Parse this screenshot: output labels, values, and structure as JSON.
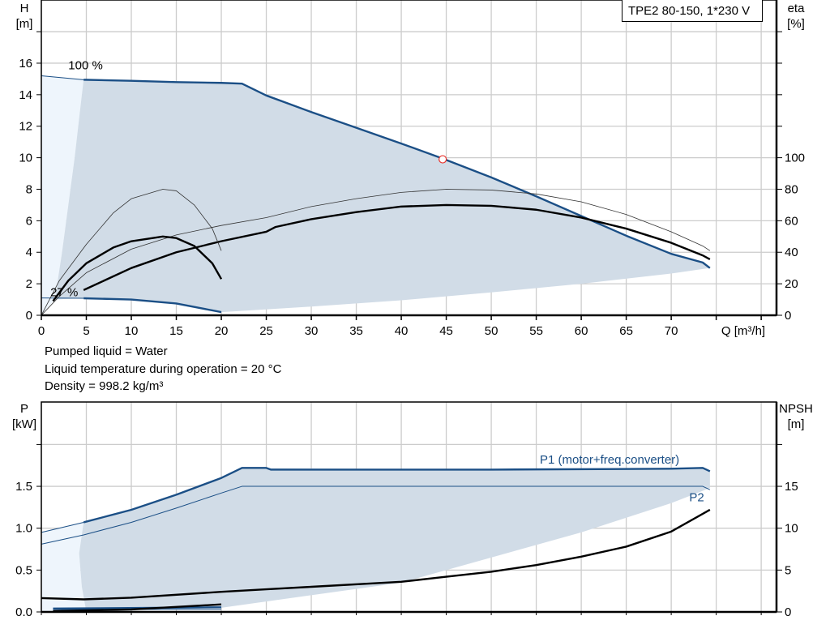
{
  "title_box": "TPE2 80-150, 1*230 V",
  "info": [
    "Pumped liquid = Water",
    "Liquid temperature during operation = 20 °C",
    "Density = 998.2 kg/m³"
  ],
  "colors": {
    "blue": "#1b4f86",
    "fill": "#d1dce7",
    "fill_light": "#eef5fc",
    "grid": "#cccccc",
    "point": "#e8322c"
  },
  "chart_data": [
    {
      "type": "line",
      "xlabel": "Q [m³/h]",
      "ylabel_left": [
        "H",
        "[m]"
      ],
      "ylabel_right": [
        "eta",
        "[%]"
      ],
      "xlim": [
        0,
        81.7
      ],
      "ylim_left": [
        0,
        20
      ],
      "ylim_right": [
        0,
        200
      ],
      "xticks": [
        0,
        5,
        10,
        15,
        20,
        25,
        30,
        35,
        40,
        45,
        50,
        55,
        60,
        65,
        70
      ],
      "yticks_left": [
        0,
        2,
        4,
        6,
        8,
        10,
        12,
        14,
        16
      ],
      "yticks_right": [
        0,
        20,
        40,
        60,
        80,
        100
      ],
      "grid": true,
      "labels": [
        {
          "text": "100 %",
          "x": 3,
          "y": 15.6
        },
        {
          "text": "27 %",
          "x": 1,
          "y": 1.2
        }
      ],
      "operating_point": {
        "Q": 44.6,
        "H": 9.9
      },
      "series": [
        {
          "id": "H-max",
          "axis": "left",
          "style": "blue",
          "points": [
            [
              4.7,
              14.95
            ],
            [
              10,
              14.88
            ],
            [
              15,
              14.8
            ],
            [
              20,
              14.75
            ],
            [
              22.3,
              14.7
            ],
            [
              25,
              13.95
            ],
            [
              30,
              12.9
            ],
            [
              35,
              11.9
            ],
            [
              40,
              10.9
            ],
            [
              44.6,
              9.95
            ],
            [
              50,
              8.75
            ],
            [
              55,
              7.55
            ],
            [
              60,
              6.3
            ],
            [
              65,
              5.05
            ],
            [
              70,
              3.9
            ],
            [
              73.5,
              3.35
            ],
            [
              74.3,
              3.0
            ]
          ]
        },
        {
          "id": "H-max-ext",
          "axis": "left",
          "style": "blue-thin",
          "points": [
            [
              0,
              15.2
            ],
            [
              4.7,
              14.95
            ]
          ]
        },
        {
          "id": "H-min",
          "axis": "left",
          "style": "blue",
          "points": [
            [
              4.7,
              1.08
            ],
            [
              10,
              1.0
            ],
            [
              15,
              0.75
            ],
            [
              20,
              0.2
            ]
          ]
        },
        {
          "id": "H-min-ext",
          "axis": "left",
          "style": "blue-thin",
          "points": [
            [
              0,
              1.1
            ],
            [
              4.7,
              1.08
            ]
          ]
        },
        {
          "id": "eta-max-thin",
          "axis": "right",
          "style": "thin",
          "points": [
            [
              0,
              0
            ],
            [
              2,
              12
            ],
            [
              5,
              27
            ],
            [
              10,
              42
            ],
            [
              15,
              51
            ],
            [
              20,
              57
            ],
            [
              25,
              62
            ],
            [
              30,
              69
            ],
            [
              35,
              74
            ],
            [
              40,
              78
            ],
            [
              45,
              80
            ],
            [
              50,
              79.5
            ],
            [
              55,
              77
            ],
            [
              60,
              72
            ],
            [
              65,
              64
            ],
            [
              70,
              53
            ],
            [
              73.5,
              44
            ],
            [
              74.3,
              41
            ]
          ]
        },
        {
          "id": "eta-max",
          "axis": "right",
          "style": "thick",
          "points": [
            [
              4.7,
              16
            ],
            [
              10,
              30
            ],
            [
              15,
              40
            ],
            [
              20,
              47
            ],
            [
              25,
              53
            ],
            [
              26,
              56
            ],
            [
              30,
              61
            ],
            [
              35,
              65.5
            ],
            [
              40,
              69
            ],
            [
              45,
              70
            ],
            [
              50,
              69.5
            ],
            [
              55,
              67
            ],
            [
              60,
              62
            ],
            [
              65,
              55
            ],
            [
              70,
              46
            ],
            [
              73.5,
              38
            ],
            [
              74.3,
              35.5
            ]
          ]
        },
        {
          "id": "eta-min-thin",
          "axis": "right",
          "style": "thin",
          "points": [
            [
              0,
              0
            ],
            [
              2,
              22
            ],
            [
              5,
              45
            ],
            [
              8,
              65
            ],
            [
              10,
              74
            ],
            [
              13.5,
              80
            ],
            [
              15,
              79
            ],
            [
              17,
              70
            ],
            [
              19,
              55
            ],
            [
              20,
              41
            ]
          ]
        },
        {
          "id": "eta-min",
          "axis": "right",
          "style": "thick",
          "points": [
            [
              1.3,
              9
            ],
            [
              3,
              22
            ],
            [
              5,
              33
            ],
            [
              8,
              43
            ],
            [
              10,
              47
            ],
            [
              13.5,
              50
            ],
            [
              15,
              49
            ],
            [
              17,
              44
            ],
            [
              19,
              33
            ],
            [
              20,
              23
            ]
          ]
        }
      ],
      "region": [
        [
          4.7,
          14.95
        ],
        [
          10,
          14.88
        ],
        [
          15,
          14.8
        ],
        [
          20,
          14.75
        ],
        [
          22.3,
          14.7
        ],
        [
          25,
          13.95
        ],
        [
          30,
          12.9
        ],
        [
          35,
          11.9
        ],
        [
          40,
          10.9
        ],
        [
          44.6,
          9.95
        ],
        [
          50,
          8.75
        ],
        [
          55,
          7.55
        ],
        [
          60,
          6.3
        ],
        [
          65,
          5.05
        ],
        [
          70,
          3.9
        ],
        [
          73.5,
          3.35
        ],
        [
          74.3,
          3.0
        ],
        [
          70,
          2.65
        ],
        [
          60,
          2.0
        ],
        [
          50,
          1.45
        ],
        [
          40,
          0.95
        ],
        [
          30,
          0.55
        ],
        [
          20,
          0.2
        ],
        [
          15,
          0.75
        ],
        [
          10,
          1.0
        ],
        [
          4.7,
          1.08
        ],
        [
          1.5,
          1.0
        ],
        [
          2.3,
          4
        ],
        [
          3,
          7
        ],
        [
          3.7,
          10
        ],
        [
          4.3,
          13
        ]
      ],
      "region_light": [
        [
          0,
          0
        ],
        [
          0,
          15.2
        ],
        [
          4.7,
          14.95
        ],
        [
          4.3,
          13
        ],
        [
          3.7,
          10
        ],
        [
          3,
          7
        ],
        [
          2.3,
          4
        ],
        [
          1.5,
          1.0
        ]
      ]
    },
    {
      "type": "line",
      "ylabel_left": [
        "P",
        "[kW]"
      ],
      "ylabel_right": [
        "NPSH",
        "[m]"
      ],
      "xlim": [
        0,
        81.7
      ],
      "ylim_left": [
        0,
        2.5
      ],
      "ylim_right": [
        0,
        25
      ],
      "yticks_left": [
        "0.0",
        "0.5",
        "1.0",
        "1.5",
        ""
      ],
      "yticks_right": [
        "0",
        "5",
        "10",
        "15",
        ""
      ],
      "grid": true,
      "labels": [
        {
          "text": "P1 (motor+freq.converter)",
          "x": 55.4,
          "y": 1.77
        },
        {
          "text": "P2",
          "x": 72,
          "y": 1.32
        }
      ],
      "series": [
        {
          "id": "P1-max",
          "axis": "left",
          "style": "blue",
          "points": [
            [
              4.7,
              1.07
            ],
            [
              10,
              1.22
            ],
            [
              15,
              1.4
            ],
            [
              20,
              1.6
            ],
            [
              22.3,
              1.72
            ],
            [
              25,
              1.72
            ],
            [
              25.5,
              1.7
            ],
            [
              50,
              1.7
            ],
            [
              70,
              1.71
            ],
            [
              73.5,
              1.72
            ],
            [
              74.3,
              1.68
            ]
          ]
        },
        {
          "id": "P1-max-ext",
          "axis": "left",
          "style": "blue-thin",
          "points": [
            [
              0,
              0.95
            ],
            [
              4.7,
              1.07
            ]
          ]
        },
        {
          "id": "P2-max",
          "axis": "left",
          "style": "blue-thin",
          "points": [
            [
              0,
              0.81
            ],
            [
              4.7,
              0.92
            ],
            [
              10,
              1.07
            ],
            [
              15,
              1.24
            ],
            [
              20,
              1.42
            ],
            [
              22.3,
              1.5
            ],
            [
              73.5,
              1.5
            ],
            [
              74.3,
              1.46
            ]
          ]
        },
        {
          "id": "P1-min",
          "axis": "left",
          "style": "blue",
          "points": [
            [
              1.3,
              0.04
            ],
            [
              20,
              0.055
            ]
          ]
        },
        {
          "id": "P2-min",
          "axis": "left",
          "style": "blue-thin",
          "points": [
            [
              1.3,
              0.03
            ],
            [
              20,
              0.03
            ]
          ]
        },
        {
          "id": "P-min-black",
          "axis": "left",
          "style": "thick",
          "points": [
            [
              1.3,
              0.01
            ],
            [
              10,
              0.03
            ],
            [
              20,
              0.09
            ]
          ]
        },
        {
          "id": "NPSH",
          "axis": "right",
          "style": "thick",
          "points": [
            [
              0,
              1.65
            ],
            [
              4.7,
              1.5
            ],
            [
              10,
              1.7
            ],
            [
              20,
              2.4
            ],
            [
              25,
              2.7
            ],
            [
              30,
              3.0
            ],
            [
              40,
              3.6
            ],
            [
              45,
              4.2
            ],
            [
              50,
              4.8
            ],
            [
              55,
              5.6
            ],
            [
              60,
              6.6
            ],
            [
              65,
              7.8
            ],
            [
              70,
              9.6
            ],
            [
              74.3,
              12.2
            ]
          ]
        }
      ],
      "region": [
        [
          4.7,
          1.07
        ],
        [
          10,
          1.22
        ],
        [
          15,
          1.4
        ],
        [
          20,
          1.6
        ],
        [
          22.3,
          1.72
        ],
        [
          50,
          1.7
        ],
        [
          73.5,
          1.72
        ],
        [
          74.3,
          1.68
        ],
        [
          74.3,
          1.48
        ],
        [
          70,
          1.3
        ],
        [
          60,
          0.95
        ],
        [
          50,
          0.65
        ],
        [
          40,
          0.35
        ],
        [
          30,
          0.2
        ],
        [
          20,
          0.05
        ],
        [
          5,
          0.0
        ],
        [
          4.5,
          0.3
        ],
        [
          4.2,
          0.7
        ]
      ],
      "region_light": [
        [
          0,
          0
        ],
        [
          0,
          0.95
        ],
        [
          4.7,
          1.07
        ],
        [
          4.2,
          0.7
        ],
        [
          4.5,
          0.3
        ],
        [
          5,
          0
        ]
      ]
    }
  ]
}
